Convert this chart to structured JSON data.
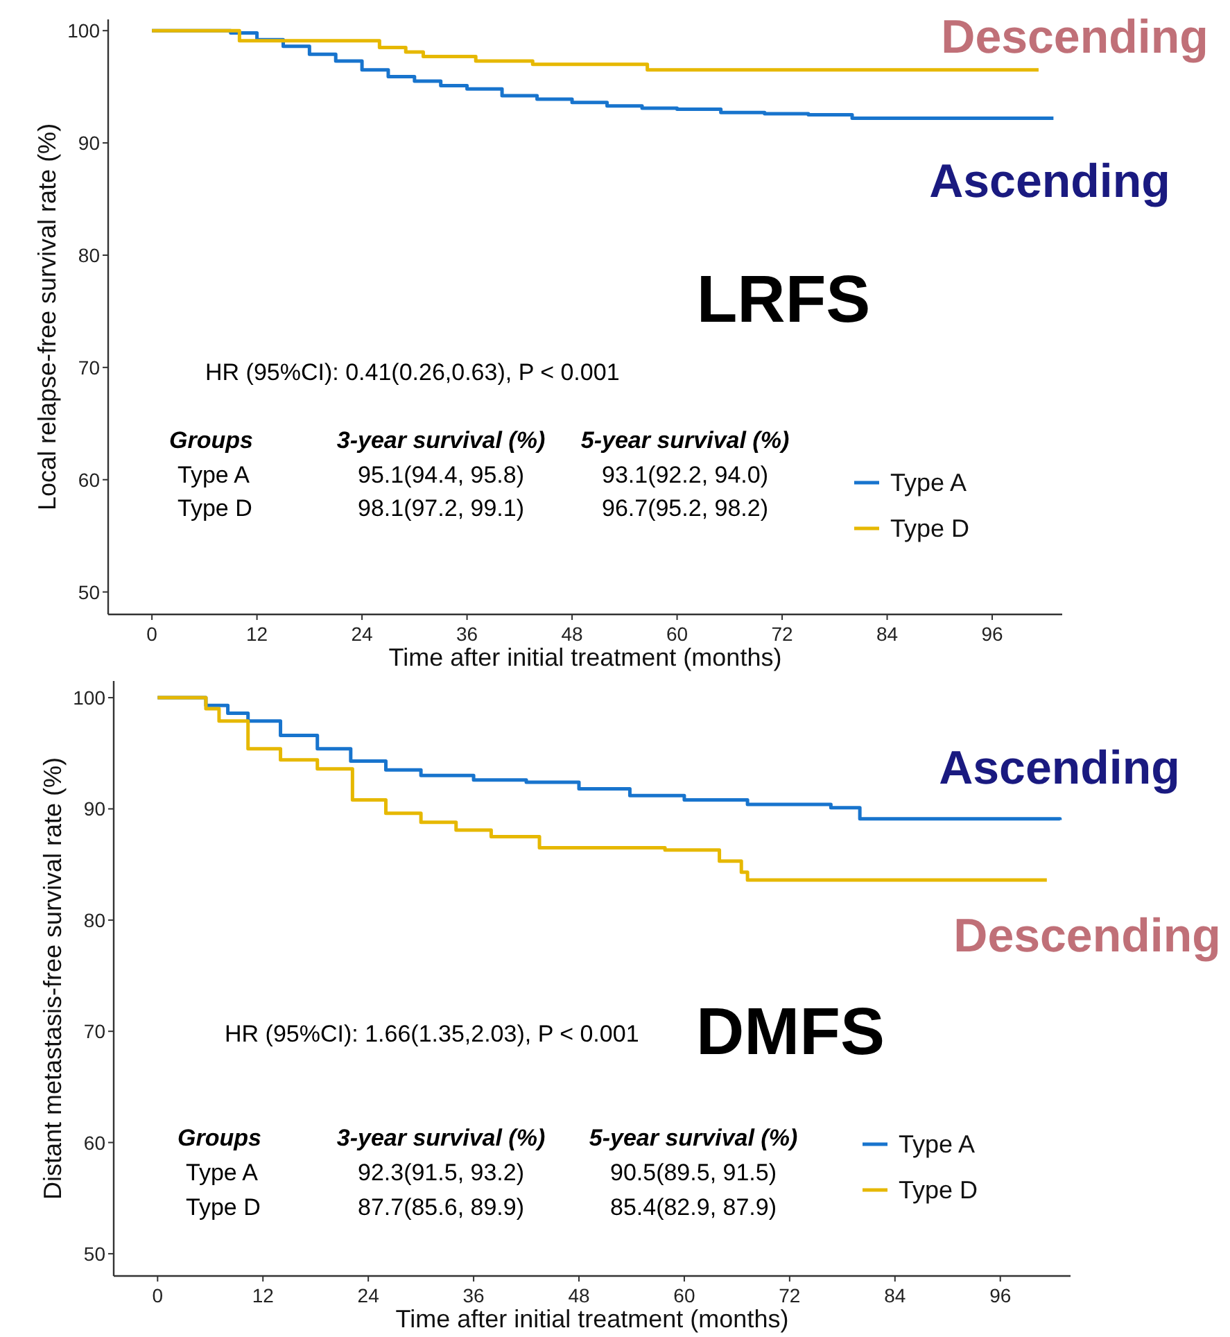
{
  "chart_data": [
    {
      "type": "step",
      "title": "LRFS",
      "xlabel": "Time after initial treatment (months)",
      "ylabel": "Local relapse-free survival rate (%)",
      "xlim": [
        -5,
        104
      ],
      "ylim": [
        48,
        101
      ],
      "xticks": [
        0,
        12,
        24,
        36,
        48,
        60,
        72,
        84,
        96
      ],
      "yticks": [
        50,
        60,
        70,
        80,
        90,
        100
      ],
      "grid": false,
      "legend": "bottom right",
      "annotations": [
        "Descending",
        "Ascending",
        "HR (95%CI): 0.41(0.26,0.63), P < 0.001",
        "Groups",
        "3-year survival (%)",
        "5-year survival (%)",
        "Type A",
        "95.1(94.4, 95.8)",
        "93.1(92.2, 94.0)",
        "Type D",
        "98.1(97.2, 99.1)",
        "96.7(95.2, 98.2)"
      ],
      "series": [
        {
          "name": "Type A",
          "color": "#1874cd",
          "x": [
            0,
            9,
            12,
            15,
            18,
            21,
            24,
            27,
            30,
            33,
            36,
            40,
            44,
            48,
            52,
            56,
            60,
            65,
            70,
            75,
            80,
            103
          ],
          "values": [
            100,
            99.8,
            99.2,
            98.6,
            97.9,
            97.3,
            96.5,
            95.9,
            95.5,
            95.1,
            94.8,
            94.2,
            93.9,
            93.6,
            93.3,
            93.1,
            93.0,
            92.7,
            92.6,
            92.5,
            92.2,
            92.2
          ]
        },
        {
          "name": "Type D",
          "color": "#e6b800",
          "x": [
            0,
            10,
            26,
            29,
            31,
            37,
            43.5,
            56.6,
            101.3
          ],
          "values": [
            100,
            99.1,
            98.5,
            98.1,
            97.7,
            97.3,
            97.0,
            96.5,
            96.5
          ]
        }
      ]
    },
    {
      "type": "step",
      "title": "DMFS",
      "xlabel": "Time after initial treatment (months)",
      "ylabel": "Distant metastasis-free survival rate (%)",
      "xlim": [
        -5,
        104
      ],
      "ylim": [
        48,
        101.5
      ],
      "xticks": [
        0,
        12,
        24,
        36,
        48,
        60,
        72,
        84,
        96
      ],
      "yticks": [
        50,
        60,
        70,
        80,
        90,
        100
      ],
      "grid": false,
      "legend": "bottom right",
      "annotations": [
        "Descending",
        "Ascending",
        "HR (95%CI): 1.66(1.35,2.03), P < 0.001",
        "Groups",
        "3-year survival (%)",
        "5-year survival (%)",
        "Type A",
        "92.3(91.5, 93.2)",
        "90.5(89.5, 91.5)",
        "Type D",
        "87.7(85.6, 89.9)",
        "85.4(82.9, 87.9)"
      ],
      "series": [
        {
          "name": "Type A",
          "color": "#1874cd",
          "x": [
            0,
            5.5,
            8,
            10.3,
            14,
            18.2,
            22,
            26,
            30,
            36,
            42,
            48,
            53.8,
            60,
            67.2,
            76.7,
            80,
            102.8
          ],
          "values": [
            100,
            99.3,
            98.6,
            97.9,
            96.6,
            95.4,
            94.3,
            93.5,
            93.0,
            92.6,
            92.4,
            91.8,
            91.2,
            90.8,
            90.4,
            90.1,
            89.1,
            89.0
          ]
        },
        {
          "name": "Type D",
          "color": "#e6b800",
          "x": [
            0,
            5.5,
            7,
            10.3,
            14,
            18.2,
            22.2,
            26,
            30,
            34,
            38,
            43.5,
            57.8,
            64,
            66.5,
            67.2,
            101.3
          ],
          "values": [
            100,
            99.0,
            97.9,
            95.4,
            94.4,
            93.6,
            90.8,
            89.6,
            88.8,
            88.1,
            87.5,
            86.5,
            86.3,
            85.3,
            84.3,
            83.6,
            83.6
          ]
        }
      ]
    }
  ]
}
